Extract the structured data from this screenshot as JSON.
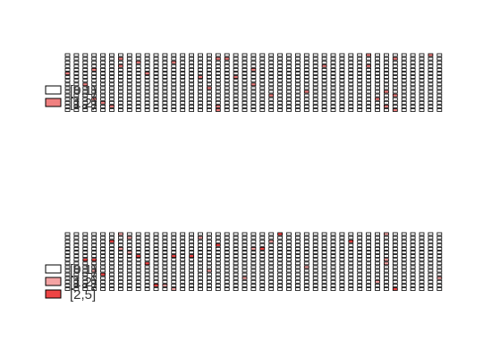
{
  "chart_data": [
    {
      "type": "heatmap",
      "panel": "top",
      "title": "",
      "xlabel": "",
      "ylabel": "",
      "n_columns": 43,
      "n_rows": 16,
      "legend": [
        {
          "label": "[0,1)",
          "color": "#ffffff"
        },
        {
          "label": "[1,2)",
          "color": "#f08080"
        }
      ],
      "cell_values": "mostly [0,1); scattered [1,2) cells"
    },
    {
      "type": "heatmap",
      "panel": "bottom",
      "title": "",
      "xlabel": "",
      "ylabel": "",
      "n_columns": 43,
      "n_rows": 16,
      "legend": [
        {
          "label": "[0,1)",
          "color": "#ffffff"
        },
        {
          "label": "[1,2)",
          "color": "#f4a3a3"
        },
        {
          "label": "[2,5]",
          "color": "#ee4444"
        }
      ],
      "cell_values": "mostly [0,1); scattered [1,2) and [2,5] cells"
    }
  ]
}
